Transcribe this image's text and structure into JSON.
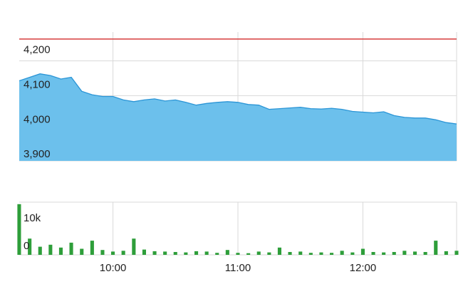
{
  "colors": {
    "area_fill": "#6cc0ec",
    "area_stroke": "#2b95d6",
    "volume_bar": "#2e9e3a",
    "reference_line": "#d94b4b",
    "grid": "#d9d9d9",
    "text": "#222222"
  },
  "chart_data": [
    {
      "type": "area",
      "x_ticks": [
        "10:00",
        "11:00",
        "12:00"
      ],
      "y_ticks": [
        "4,200",
        "4,100",
        "4,000",
        "3,900"
      ],
      "y_tick_values": [
        4200,
        4100,
        4000,
        3900
      ],
      "ylim": [
        3880,
        4250
      ],
      "reference_line_value": 4230,
      "grid": true,
      "x": [
        "9:15",
        "9:20",
        "9:25",
        "9:30",
        "9:35",
        "9:40",
        "9:45",
        "9:50",
        "9:55",
        "10:00",
        "10:05",
        "10:10",
        "10:15",
        "10:20",
        "10:25",
        "10:30",
        "10:35",
        "10:40",
        "10:45",
        "10:50",
        "10:55",
        "11:00",
        "11:05",
        "11:10",
        "11:15",
        "11:20",
        "11:25",
        "11:30",
        "11:35",
        "11:40",
        "11:45",
        "11:50",
        "11:55",
        "12:00",
        "12:05",
        "12:10",
        "12:15",
        "12:20",
        "12:25",
        "12:30",
        "12:35",
        "12:40",
        "12:45"
      ],
      "values": [
        4110,
        4120,
        4130,
        4125,
        4115,
        4120,
        4080,
        4070,
        4065,
        4065,
        4055,
        4050,
        4055,
        4058,
        4052,
        4055,
        4048,
        4040,
        4045,
        4048,
        4050,
        4048,
        4042,
        4040,
        4028,
        4030,
        4032,
        4034,
        4030,
        4029,
        4031,
        4028,
        4022,
        4020,
        4018,
        4021,
        4010,
        4005,
        4003,
        4003,
        3998,
        3990,
        3986
      ]
    },
    {
      "type": "bar",
      "y_ticks": [
        "10k",
        "0"
      ],
      "y_tick_values": [
        10000,
        0
      ],
      "ylim": [
        0,
        13000
      ],
      "grid": true,
      "x": [
        "9:15",
        "9:20",
        "9:25",
        "9:30",
        "9:35",
        "9:40",
        "9:45",
        "9:50",
        "9:55",
        "10:00",
        "10:05",
        "10:10",
        "10:15",
        "10:20",
        "10:25",
        "10:30",
        "10:35",
        "10:40",
        "10:45",
        "10:50",
        "10:55",
        "11:00",
        "11:05",
        "11:10",
        "11:15",
        "11:20",
        "11:25",
        "11:30",
        "11:35",
        "11:40",
        "11:45",
        "11:50",
        "11:55",
        "12:00",
        "12:05",
        "12:10",
        "12:15",
        "12:20",
        "12:25",
        "12:30",
        "12:35",
        "12:40",
        "12:45"
      ],
      "values": [
        12500,
        4000,
        2000,
        2500,
        1800,
        3000,
        1500,
        3500,
        1200,
        800,
        1000,
        4000,
        1300,
        900,
        800,
        700,
        600,
        900,
        800,
        500,
        1200,
        500,
        400,
        800,
        600,
        1800,
        700,
        800,
        500,
        600,
        500,
        1000,
        600,
        1500,
        700,
        600,
        700,
        1000,
        800,
        700,
        3500,
        900,
        1000
      ]
    }
  ]
}
